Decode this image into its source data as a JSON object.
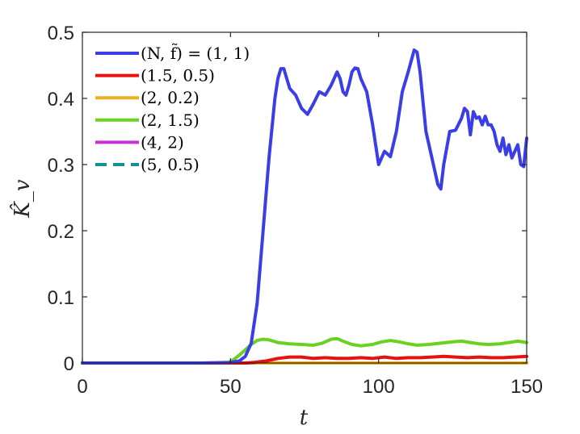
{
  "chart_data": {
    "type": "line",
    "xlabel": "t",
    "ylabel": "K̂_v",
    "xlim": [
      0,
      150
    ],
    "ylim": [
      0,
      0.5
    ],
    "xticks": [
      0,
      50,
      100,
      150
    ],
    "xtick_labels": [
      "0",
      "50",
      "100",
      "150"
    ],
    "yticks": [
      0,
      0.1,
      0.2,
      0.3,
      0.4,
      0.5
    ],
    "ytick_labels": [
      "0",
      "0.1",
      "0.2",
      "0.3",
      "0.4",
      "0.5"
    ],
    "grid": false,
    "legend_position": "top-left",
    "series": [
      {
        "name": "(N, f̃) = (1, 1)",
        "color": "#3b3ee6",
        "dash": "solid",
        "x": [
          0,
          40,
          50,
          53,
          55,
          57,
          59,
          61,
          63,
          65,
          66,
          67,
          68,
          69,
          70,
          71,
          72,
          74,
          76,
          78,
          80,
          82,
          84,
          86,
          87,
          88,
          89,
          90,
          91,
          92,
          93,
          94,
          96,
          98,
          100,
          102,
          104,
          106,
          108,
          110,
          112,
          113,
          114,
          116,
          118,
          120,
          121,
          122,
          124,
          126,
          128,
          129,
          130,
          131,
          132,
          133,
          134,
          135,
          136,
          137,
          138,
          139,
          140,
          141,
          142,
          143,
          144,
          145,
          146,
          147,
          148,
          149,
          150
        ],
        "y": [
          0.0,
          0.0,
          0.001,
          0.003,
          0.01,
          0.03,
          0.09,
          0.2,
          0.31,
          0.4,
          0.43,
          0.445,
          0.445,
          0.43,
          0.415,
          0.41,
          0.405,
          0.385,
          0.376,
          0.392,
          0.41,
          0.405,
          0.42,
          0.44,
          0.43,
          0.41,
          0.405,
          0.42,
          0.44,
          0.446,
          0.445,
          0.43,
          0.41,
          0.36,
          0.3,
          0.32,
          0.312,
          0.35,
          0.41,
          0.44,
          0.473,
          0.47,
          0.44,
          0.35,
          0.31,
          0.27,
          0.263,
          0.3,
          0.35,
          0.352,
          0.37,
          0.385,
          0.38,
          0.345,
          0.38,
          0.37,
          0.372,
          0.36,
          0.373,
          0.36,
          0.36,
          0.35,
          0.33,
          0.32,
          0.34,
          0.315,
          0.33,
          0.31,
          0.32,
          0.33,
          0.3,
          0.297,
          0.34
        ]
      },
      {
        "name": "(1.5, 0.5)",
        "color": "#e81010",
        "dash": "solid",
        "x": [
          0,
          55,
          58,
          62,
          66,
          70,
          74,
          78,
          82,
          86,
          90,
          94,
          98,
          102,
          106,
          110,
          114,
          118,
          122,
          126,
          130,
          134,
          138,
          142,
          146,
          150
        ],
        "y": [
          0.0,
          0.0,
          0.001,
          0.003,
          0.007,
          0.009,
          0.009,
          0.007,
          0.008,
          0.007,
          0.007,
          0.008,
          0.007,
          0.009,
          0.007,
          0.008,
          0.008,
          0.009,
          0.01,
          0.009,
          0.008,
          0.009,
          0.008,
          0.008,
          0.009,
          0.01
        ]
      },
      {
        "name": "(2, 0.2)",
        "color": "#edb120",
        "dash": "solid",
        "x": [
          0,
          150
        ],
        "y": [
          0.0,
          0.0
        ]
      },
      {
        "name": "(2, 1.5)",
        "color": "#6ad11f",
        "dash": "solid",
        "x": [
          0,
          49,
          51,
          53,
          55,
          57,
          59,
          61,
          63,
          66,
          70,
          74,
          78,
          81,
          84,
          86,
          88,
          91,
          94,
          98,
          101,
          104,
          107,
          110,
          113,
          117,
          121,
          125,
          128,
          131,
          134,
          137,
          141,
          144,
          147,
          150
        ],
        "y": [
          0.0,
          0.0,
          0.005,
          0.012,
          0.02,
          0.028,
          0.034,
          0.036,
          0.035,
          0.031,
          0.029,
          0.028,
          0.027,
          0.03,
          0.036,
          0.037,
          0.033,
          0.028,
          0.026,
          0.028,
          0.032,
          0.034,
          0.032,
          0.029,
          0.027,
          0.028,
          0.03,
          0.032,
          0.033,
          0.031,
          0.029,
          0.028,
          0.029,
          0.031,
          0.033,
          0.031
        ]
      },
      {
        "name": "(4, 2)",
        "color": "#c931d6",
        "dash": "solid",
        "x": [
          0,
          150
        ],
        "y": [
          0.0,
          0.0
        ]
      },
      {
        "name": "(5, 0.5)",
        "color": "#149292",
        "dash": "dashed",
        "x": [
          0,
          150
        ],
        "y": [
          0.0,
          0.0
        ]
      }
    ]
  }
}
